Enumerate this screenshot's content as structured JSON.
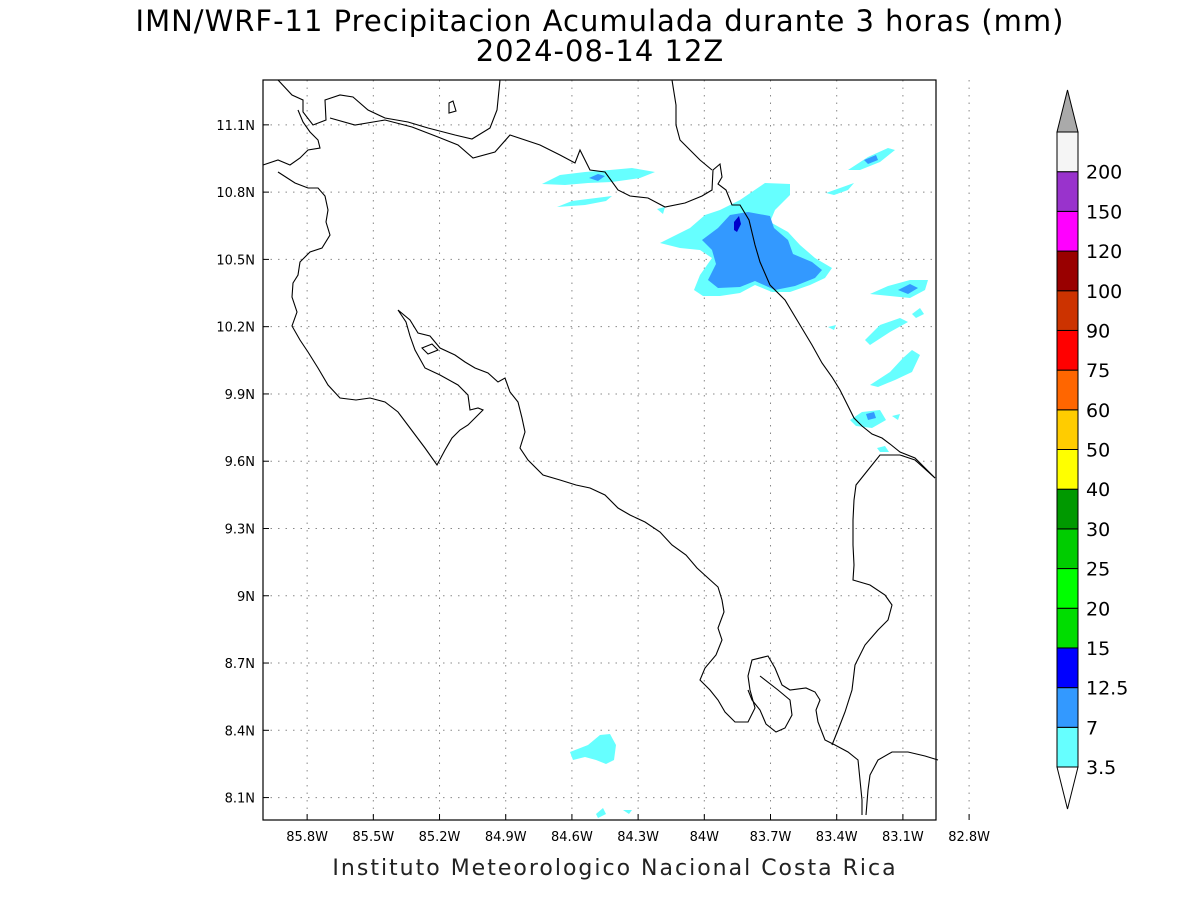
{
  "title": {
    "line1": "IMN/WRF-11 Precipitacion Acumulada durante 3 horas (mm)",
    "line2": "2024-08-14 12Z"
  },
  "footer": "Instituto Meteorologico Nacional Costa Rica",
  "map": {
    "lon_range": [
      -86.0,
      -82.95
    ],
    "lat_range": [
      8.0,
      11.3
    ],
    "grid": "dotted",
    "lon_ticks": [
      {
        "value": -85.8,
        "label": "85.8W"
      },
      {
        "value": -85.5,
        "label": "85.5W"
      },
      {
        "value": -85.2,
        "label": "85.2W"
      },
      {
        "value": -84.9,
        "label": "84.9W"
      },
      {
        "value": -84.6,
        "label": "84.6W"
      },
      {
        "value": -84.3,
        "label": "84.3W"
      },
      {
        "value": -84.0,
        "label": "84W"
      },
      {
        "value": -83.7,
        "label": "83.7W"
      },
      {
        "value": -83.4,
        "label": "83.4W"
      },
      {
        "value": -83.1,
        "label": "83.1W"
      },
      {
        "value": -82.8,
        "label": "82.8W"
      }
    ],
    "lat_ticks": [
      {
        "value": 11.1,
        "label": "11.1N"
      },
      {
        "value": 10.8,
        "label": "10.8N"
      },
      {
        "value": 10.5,
        "label": "10.5N"
      },
      {
        "value": 10.2,
        "label": "10.2N"
      },
      {
        "value": 9.9,
        "label": "9.9N"
      },
      {
        "value": 9.6,
        "label": "9.6N"
      },
      {
        "value": 9.3,
        "label": "9.3N"
      },
      {
        "value": 9.0,
        "label": "9N"
      },
      {
        "value": 8.7,
        "label": "8.7N"
      },
      {
        "value": 8.4,
        "label": "8.4N"
      },
      {
        "value": 8.1,
        "label": "8.1N"
      }
    ]
  },
  "colorbar": {
    "bins": [
      {
        "color": "#66ffff",
        "label": "3.5"
      },
      {
        "color": "#3399ff",
        "label": "7"
      },
      {
        "color": "#0000ff",
        "label": "12.5"
      },
      {
        "color": "#00dd00",
        "label": "15"
      },
      {
        "color": "#00ff00",
        "label": "20"
      },
      {
        "color": "#00cc00",
        "label": "25"
      },
      {
        "color": "#009900",
        "label": "30"
      },
      {
        "color": "#ffff00",
        "label": "40"
      },
      {
        "color": "#ffcc00",
        "label": "50"
      },
      {
        "color": "#ff6600",
        "label": "60"
      },
      {
        "color": "#ff0000",
        "label": "75"
      },
      {
        "color": "#cc3300",
        "label": "90"
      },
      {
        "color": "#990000",
        "label": "100"
      },
      {
        "color": "#ff00ff",
        "label": "120"
      },
      {
        "color": "#9933cc",
        "label": "150"
      },
      {
        "color": "#f5f5f5",
        "label": "200"
      }
    ],
    "over_color": "#aaaaaa",
    "under_color": "#ffffff"
  },
  "colors": {
    "light_rain": "#66ffff",
    "moderate_rain": "#3399ff",
    "heavy_rain": "#0000cc"
  }
}
